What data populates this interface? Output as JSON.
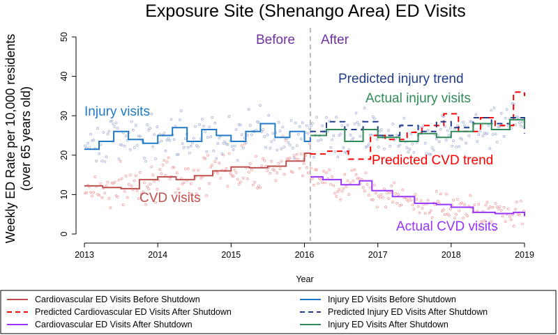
{
  "chart_data": {
    "type": "line",
    "title": "Exposure Site (Shenango Area) ED Visits",
    "xlabel": "Year",
    "ylabel_line1": "Weekly ED Rate per 10,000 residents",
    "ylabel_line2": "(over 65 years old)",
    "xlim": [
      2013,
      2019
    ],
    "ylim": [
      0,
      50
    ],
    "x_ticks": [
      "2013",
      "2014",
      "2015",
      "2016",
      "2017",
      "2018",
      "2019"
    ],
    "y_ticks": [
      "0",
      "10",
      "20",
      "30",
      "40",
      "50"
    ],
    "shutdown_x": 2016.08,
    "colors": {
      "cvd_before": "#c0504d",
      "cvd_predicted": "#ff0000",
      "cvd_after": "#9933ff",
      "injury_before": "#1f78c8",
      "injury_predicted": "#1f3b8c",
      "injury_after": "#2e8b57",
      "divider": "#aaaaaa",
      "before_after": "#7030a0"
    },
    "annotations": {
      "before": "Before",
      "after": "After",
      "injury_visits": "Injury visits",
      "cvd_visits": "CVD visits",
      "predicted_injury": "Predicted injury trend",
      "actual_injury": "Actual injury visits",
      "predicted_cvd": "Predicted CVD trend",
      "actual_cvd": "Actual CVD visits"
    },
    "series": [
      {
        "name": "Cardiovascular ED Visits Before Shutdown",
        "key": "cvd_before",
        "dash": false,
        "x": [
          2013.0,
          2013.25,
          2013.5,
          2013.75,
          2014.0,
          2014.25,
          2014.5,
          2014.75,
          2015.0,
          2015.25,
          2015.5,
          2015.75,
          2016.0,
          2016.08
        ],
        "y": [
          12.2,
          11.8,
          11.5,
          13.8,
          14.5,
          13.8,
          14.8,
          16.0,
          17.0,
          16.8,
          17.2,
          18.5,
          20.5,
          20.3
        ]
      },
      {
        "name": "Predicted Cardiovascular ED Visits After Shutdown",
        "key": "cvd_predicted",
        "dash": true,
        "x": [
          2016.08,
          2016.3,
          2016.6,
          2016.9,
          2017.1,
          2017.4,
          2017.6,
          2017.9,
          2018.1,
          2018.4,
          2018.6,
          2018.85,
          2019.0
        ],
        "y": [
          20.3,
          21.0,
          19.0,
          25.0,
          24.0,
          25.8,
          27.5,
          30.5,
          26.0,
          29.5,
          27.5,
          36.0,
          35.0
        ]
      },
      {
        "name": "Cardiovascular ED Visits After Shutdown",
        "key": "cvd_after",
        "dash": false,
        "x": [
          2016.08,
          2016.25,
          2016.5,
          2016.75,
          2016.92,
          2017.2,
          2017.5,
          2017.8,
          2018.0,
          2018.3,
          2018.6,
          2018.85,
          2019.0
        ],
        "y": [
          14.5,
          13.8,
          12.5,
          13.5,
          11.0,
          9.5,
          7.8,
          7.5,
          6.8,
          5.5,
          5.2,
          5.5,
          4.5
        ]
      },
      {
        "name": "Injury ED Visits Before Shutdown",
        "key": "injury_before",
        "dash": false,
        "x": [
          2013.0,
          2013.2,
          2013.4,
          2013.6,
          2013.8,
          2014.0,
          2014.2,
          2014.4,
          2014.6,
          2014.8,
          2015.0,
          2015.2,
          2015.4,
          2015.6,
          2015.8,
          2016.0,
          2016.08
        ],
        "y": [
          21.5,
          23.5,
          26.0,
          24.0,
          23.0,
          25.0,
          27.0,
          23.5,
          26.5,
          25.0,
          23.5,
          26.0,
          28.0,
          24.5,
          26.0,
          23.5,
          24.5
        ]
      },
      {
        "name": "Predicted Injury ED Visits After Shutdown",
        "key": "injury_predicted",
        "dash": true,
        "x": [
          2016.08,
          2016.3,
          2016.55,
          2016.8,
          2017.0,
          2017.3,
          2017.55,
          2017.8,
          2018.0,
          2018.3,
          2018.55,
          2018.8,
          2019.0
        ],
        "y": [
          26.0,
          28.5,
          26.5,
          28.5,
          25.0,
          27.5,
          26.0,
          28.5,
          27.0,
          29.5,
          28.0,
          29.5,
          25.5
        ]
      },
      {
        "name": "Injury ED Visits After Shutdown",
        "key": "injury_after",
        "dash": false,
        "x": [
          2016.08,
          2016.3,
          2016.55,
          2016.8,
          2017.0,
          2017.3,
          2017.55,
          2017.8,
          2018.0,
          2018.3,
          2018.55,
          2018.8,
          2019.0
        ],
        "y": [
          25.0,
          26.5,
          23.5,
          26.5,
          24.5,
          23.5,
          25.5,
          24.5,
          26.0,
          28.0,
          26.5,
          29.0,
          27.0
        ]
      }
    ],
    "legend": [
      {
        "label": "Cardiovascular ED Visits Before Shutdown",
        "key": "cvd_before",
        "dash": false
      },
      {
        "label": "Injury ED Visits Before Shutdown",
        "key": "injury_before",
        "dash": false
      },
      {
        "label": "Predicted Cardiovascular ED Visits After Shutdown",
        "key": "cvd_predicted",
        "dash": true
      },
      {
        "label": "Predicted Injury ED Visits After Shutdown",
        "key": "injury_predicted",
        "dash": true
      },
      {
        "label": "Cardiovascular ED Visits After Shutdown",
        "key": "cvd_after",
        "dash": false
      },
      {
        "label": "Injury ED Visits After Shutdown",
        "key": "injury_after",
        "dash": false
      }
    ]
  }
}
